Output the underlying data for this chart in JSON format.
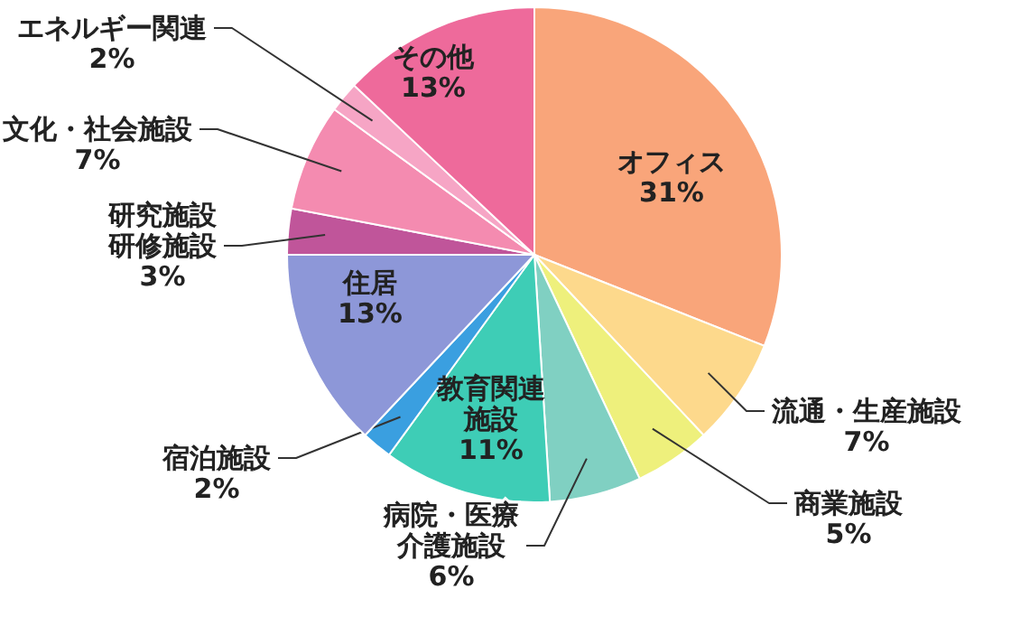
{
  "chart_data": {
    "type": "pie",
    "categories": [
      "オフィス",
      "流通・生産施設",
      "商業施設",
      "病院・医療介護施設",
      "教育関連施設",
      "宿泊施設",
      "住居",
      "研究施設研修施設",
      "文化・社会施設",
      "エネルギー関連",
      "その他"
    ],
    "values": [
      31,
      7,
      5,
      6,
      11,
      2,
      13,
      3,
      7,
      2,
      13
    ],
    "value_labels": [
      "31%",
      "7%",
      "5%",
      "6%",
      "11%",
      "2%",
      "13%",
      "3%",
      "7%",
      "2%",
      "13%"
    ],
    "colors": [
      "#f9a57a",
      "#fdd98c",
      "#eef07c",
      "#80d0c2",
      "#3ecdb6",
      "#3a9fe0",
      "#8d97d8",
      "#c0559a",
      "#f48bb0",
      "#f6a5c5",
      "#ee6a9b"
    ],
    "legend": false
  }
}
